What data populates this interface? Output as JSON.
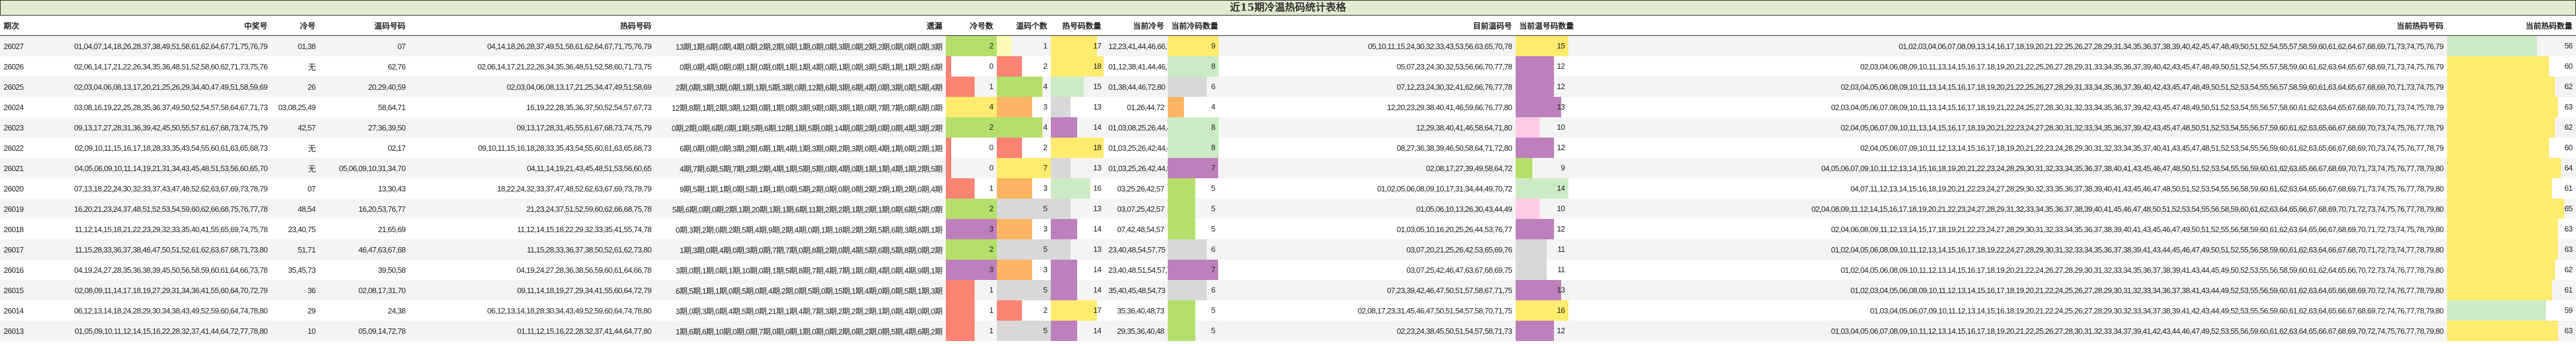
{
  "title": "近15期冷温热码统计表格",
  "colors": {
    "title_bg": "#e2ebd0",
    "yellow": "#ffeb6e",
    "light_yellow": "#fffbb8",
    "green": "#b5df6a",
    "light_green": "#cdeac6",
    "red": "#fa8374",
    "orange": "#fcb562",
    "gray": "#d8d8d8",
    "purple": "#be80bd",
    "pink": "#fdcbe6"
  },
  "headers": [
    "期次",
    "中奖号",
    "冷号",
    "温码号码",
    "热码号码",
    "遗漏",
    "冷号数",
    "温码个数",
    "热号码数量",
    "当前冷号",
    "当前冷码数量",
    "目前温码号",
    "当前温号码数量",
    "当前热码号码",
    "当前热码数量"
  ],
  "rows": [
    {
      "period": "26027",
      "winning": "01,04,07,14,18,26,28,37,38,49,51,58,61,62,64,67,71,75,76,79",
      "cold": "01,38",
      "warm": "07",
      "hot": "04,14,18,26,28,37,49,51,58,61,62,64,67,71,75,76,79",
      "miss": "13期,1期,6期,0期,4期,0期,2期,2期,9期,1期,0期,0期,3期,0期,2期,2期,0期,0期,0期,3期",
      "cold_count": "2",
      "warm_count": "1",
      "hot_count": "17",
      "cur_cold": "12,23,41,44,46,66,72,77,80",
      "cur_cold_count": "9",
      "cur_warm": "05,10,11,15,24,30,32,33,43,53,56,63,65,70,78",
      "cur_warm_count": "15",
      "cur_hot": "01,02,03,04,06,07,08,09,13,14,16,17,18,19,20,21,22,25,26,27,28,29,31,34,35,36,37,38,39,40,42,45,47,48,49,50,51,52,54,55,57,58,59,60,61,62,64,67,68,69,71,73,74,75,76,79",
      "cur_hot_count": "56"
    },
    {
      "period": "26026",
      "winning": "02,06,14,17,21,22,26,34,35,36,48,51,52,58,60,62,71,73,75,76",
      "cold": "无",
      "warm": "62,76",
      "hot": "02,06,14,17,21,22,26,34,35,36,48,51,52,58,60,71,73,75",
      "miss": "0期,0期,4期,0期,0期,1期,0期,0期,1期,1期,4期,0期,1期,0期,3期,5期,1期,1期,2期,6期",
      "cold_count": "0",
      "warm_count": "2",
      "hot_count": "18",
      "cur_cold": "01,12,38,41,44,46,72,80",
      "cur_cold_count": "8",
      "cur_warm": "05,07,23,24,30,32,53,56,66,70,77,78",
      "cur_warm_count": "12",
      "cur_hot": "02,03,04,06,08,09,10,11,13,14,15,16,17,18,19,20,21,22,25,26,27,28,29,31,33,34,35,36,37,39,40,42,43,45,47,48,49,50,51,52,54,55,57,58,59,60,61,62,63,64,65,67,68,69,71,73,74,75,76,79",
      "cur_hot_count": "60"
    },
    {
      "period": "26025",
      "winning": "02,03,04,06,08,13,17,20,21,25,26,29,34,40,47,49,51,58,59,69",
      "cold": "26",
      "warm": "20,29,40,59",
      "hot": "02,03,04,06,08,13,17,21,25,34,47,49,51,58,69",
      "miss": "2期,0期,3期,3期,0期,1期,1期,5期,3期,0期,12期,6期,3期,6期,4期,0期,3期,0期,5期,4期",
      "cold_count": "1",
      "warm_count": "4",
      "hot_count": "15",
      "cur_cold": "01,38,44,46,72,80",
      "cur_cold_count": "6",
      "cur_warm": "07,12,23,24,30,32,41,62,66,76,77,78",
      "cur_warm_count": "12",
      "cur_hot": "02,03,04,05,06,08,09,10,11,13,14,15,16,17,18,19,20,21,22,25,26,27,28,29,31,33,34,35,36,37,39,40,42,43,45,47,48,49,50,51,52,53,54,55,56,57,58,59,60,61,63,64,65,67,68,69,70,71,73,74,75,79",
      "cur_hot_count": "62"
    },
    {
      "period": "26024",
      "winning": "03,08,16,19,22,25,28,35,36,37,49,50,52,54,57,58,64,67,71,73",
      "cold": "03,08,25,49",
      "warm": "58,64,71",
      "hot": "16,19,22,28,35,36,37,50,52,54,57,67,73",
      "miss": "12期,8期,1期,2期,3期,12期,0期,1期,0期,3期,9期,0期,3期,1期,0期,7期,7期,0期,6期,0期",
      "cold_count": "4",
      "warm_count": "3",
      "hot_count": "13",
      "cur_cold": "01,26,44,72",
      "cur_cold_count": "4",
      "cur_warm": "12,20,23,29,38,40,41,46,59,66,76,77,80",
      "cur_warm_count": "13",
      "cur_hot": "02,03,04,05,06,07,08,09,10,11,13,14,15,16,17,18,19,21,22,24,25,27,28,30,31,32,33,34,35,36,37,39,42,43,45,47,48,49,50,51,52,53,54,55,56,57,58,60,61,62,63,64,65,67,68,69,70,71,73,74,75,78,79",
      "cur_hot_count": "63"
    },
    {
      "period": "26023",
      "winning": "09,13,17,27,28,31,36,39,42,45,50,55,57,61,67,68,73,74,75,79",
      "cold": "42,57",
      "warm": "27,36,39,50",
      "hot": "09,13,17,28,31,45,55,61,67,68,73,74,75,79",
      "miss": "0期,2期,0期,6期,0期,1期,5期,6期,12期,1期,5期,0期,14期,0期,2期,0期,0期,4期,3期,2期",
      "cold_count": "2",
      "warm_count": "4",
      "hot_count": "14",
      "cur_cold": "01,03,08,25,26,44,49,72",
      "cur_cold_count": "8",
      "cur_warm": "12,29,38,40,41,46,58,64,71,80",
      "cur_warm_count": "10",
      "cur_hot": "02,04,05,06,07,09,10,11,13,14,15,16,17,18,19,20,21,22,23,24,27,28,30,31,32,33,34,35,36,37,39,42,43,45,47,48,50,51,52,53,54,55,56,57,59,60,61,62,63,65,66,67,68,69,70,73,74,75,76,77,78,79",
      "cur_hot_count": "62"
    },
    {
      "period": "26022",
      "winning": "02,09,10,11,15,16,17,18,28,33,35,43,54,55,60,61,63,65,68,73",
      "cold": "无",
      "warm": "02,17",
      "hot": "09,10,11,15,16,18,28,33,35,43,54,55,60,61,63,65,68,73",
      "miss": "6期,0期,0期,0期,3期,2期,6期,1期,4期,1期,3期,0期,2期,3期,0期,4期,1期,0期,2期,1期",
      "cold_count": "0",
      "warm_count": "2",
      "hot_count": "18",
      "cur_cold": "01,03,25,26,42,44,49,57",
      "cur_cold_count": "8",
      "cur_warm": "08,27,36,38,39,46,50,58,64,71,72,80",
      "cur_warm_count": "12",
      "cur_hot": "02,04,05,06,07,09,10,11,12,13,14,15,16,17,18,19,20,21,22,23,24,28,29,30,31,32,33,34,35,37,40,41,43,45,47,48,51,52,53,54,55,56,59,60,61,62,63,65,66,67,68,69,70,73,74,75,76,77,78,79",
      "cur_hot_count": "60"
    },
    {
      "period": "26021",
      "winning": "04,05,06,09,10,11,14,19,21,31,34,43,45,48,51,53,56,60,65,70",
      "cold": "无",
      "warm": "05,06,09,10,31,34,70",
      "hot": "04,11,14,19,21,43,45,48,51,53,56,60,65",
      "miss": "4期,7期,6期,5期,7期,2期,2期,4期,1期,5期,5期,0期,4期,0期,1期,1期,4期,1期,2期,5期",
      "cold_count": "0",
      "warm_count": "7",
      "hot_count": "13",
      "cur_cold": "01,03,25,26,42,44,57",
      "cur_cold_count": "7",
      "cur_warm": "02,08,17,27,39,49,58,64,72",
      "cur_warm_count": "9",
      "cur_hot": "04,05,06,07,09,10,11,12,13,14,15,16,18,19,20,21,22,23,24,28,29,30,31,32,33,34,35,36,37,38,40,41,43,45,46,47,48,50,51,52,53,54,55,56,59,60,61,62,63,65,66,67,68,69,70,71,73,74,75,76,77,78,79,80",
      "cur_hot_count": "64"
    },
    {
      "period": "26020",
      "winning": "07,13,18,22,24,30,32,33,37,43,47,48,52,62,63,67,69,73,78,79",
      "cold": "07",
      "warm": "13,30,43",
      "hot": "18,22,24,32,33,37,47,48,52,62,63,67,69,73,78,79",
      "miss": "9期,5期,1期,1期,0期,5期,1期,1期,0期,5期,2期,0期,0期,0期,2期,2期,1期,2期,0期,4期",
      "cold_count": "1",
      "warm_count": "3",
      "hot_count": "16",
      "cur_cold": "03,25,26,42,57",
      "cur_cold_count": "5",
      "cur_warm": "01,02,05,06,08,09,10,17,31,34,44,49,70,72",
      "cur_warm_count": "14",
      "cur_hot": "04,07,11,12,13,14,15,16,18,19,20,21,22,23,24,27,28,29,30,32,33,35,36,37,38,39,40,41,43,45,46,47,48,50,51,52,53,54,55,56,58,59,60,61,62,63,64,65,66,67,68,69,71,73,74,75,76,77,78,79,80",
      "cur_hot_count": "61"
    },
    {
      "period": "26019",
      "winning": "16,20,21,23,24,37,48,51,52,53,54,59,60,62,66,68,75,76,77,78",
      "cold": "48,54",
      "warm": "16,20,53,76,77",
      "hot": "21,23,24,37,51,52,59,60,62,66,68,75,78",
      "miss": "5期,6期,0期,0期,2期,1期,20期,1期,1期,6期,11期,2期,2期,1期,2期,1期,0期,6期,5期,0期",
      "cold_count": "2",
      "warm_count": "5",
      "hot_count": "13",
      "cur_cold": "03,07,25,42,57",
      "cur_cold_count": "5",
      "cur_warm": "01,05,06,10,13,26,30,43,44,49",
      "cur_warm_count": "10",
      "cur_hot": "02,04,08,09,11,12,14,15,16,17,18,19,20,21,22,23,24,27,28,29,31,32,33,34,35,36,37,38,39,40,41,45,46,47,48,50,51,52,53,54,55,56,58,59,60,61,62,63,64,65,66,67,68,69,70,71,72,73,74,75,76,77,78,79,80",
      "cur_hot_count": "65"
    },
    {
      "period": "26018",
      "winning": "11,12,14,15,18,21,22,23,29,32,33,35,40,41,55,65,69,74,75,78",
      "cold": "23,40,75",
      "warm": "21,65,69",
      "hot": "11,12,14,15,18,22,29,32,33,35,41,55,74,78",
      "miss": "0期,3期,2期,0期,2期,5期,4期,9期,2期,4期,0期,1期,18期,2期,2期,5期,6期,3期,8期,1期",
      "cold_count": "3",
      "warm_count": "3",
      "hot_count": "14",
      "cur_cold": "07,42,48,54,57",
      "cur_cold_count": "5",
      "cur_warm": "01,03,05,10,16,20,25,26,44,53,76,77",
      "cur_warm_count": "12",
      "cur_hot": "02,04,06,08,09,11,12,13,14,15,17,18,19,21,22,23,24,27,28,29,30,31,32,33,34,35,36,37,38,39,40,41,43,45,46,47,49,50,51,52,55,56,58,59,60,61,62,63,64,65,66,67,68,69,70,71,72,73,74,75,78,79,80",
      "cur_hot_count": "63"
    },
    {
      "period": "26017",
      "winning": "11,15,28,33,36,37,38,46,47,50,51,52,61,62,63,67,68,71,73,80",
      "cold": "51,71",
      "warm": "46,47,63,67,68",
      "hot": "11,15,28,33,36,37,38,50,52,61,62,73,80",
      "miss": "1期,3期,0期,4期,0期,3期,0期,7期,7期,0期,8期,2期,0期,4期,5期,6期,5期,8期,0期,2期",
      "cold_count": "2",
      "warm_count": "5",
      "hot_count": "13",
      "cur_cold": "23,40,48,54,57,75",
      "cur_cold_count": "6",
      "cur_warm": "03,07,20,21,25,26,42,53,65,69,76",
      "cur_warm_count": "11",
      "cur_hot": "01,02,04,05,06,08,09,10,11,12,13,14,15,16,17,18,19,22,24,27,28,29,30,31,32,33,34,35,36,37,38,39,41,43,44,45,46,47,49,50,51,52,55,56,58,59,60,61,62,63,64,66,67,68,70,71,72,73,74,77,78,79,80",
      "cur_hot_count": "63"
    },
    {
      "period": "26016",
      "winning": "04,19,24,27,28,35,36,38,39,45,50,56,58,59,60,61,64,66,73,78",
      "cold": "35,45,73",
      "warm": "39,50,58",
      "hot": "04,19,24,27,28,36,38,56,59,60,61,64,66,78",
      "miss": "3期,0期,1期,0期,1期,10期,0期,1期,5期,8期,7期,4期,7期,1期,0期,4期,0期,4期,9期,1期",
      "cold_count": "3",
      "warm_count": "3",
      "hot_count": "14",
      "cur_cold": "23,40,48,51,54,57,71",
      "cur_cold_count": "7",
      "cur_warm": "03,07,25,42,46,47,63,67,68,69,75",
      "cur_warm_count": "11",
      "cur_hot": "01,02,04,05,06,08,09,10,11,12,13,14,15,16,17,18,19,20,21,22,24,26,27,28,29,30,31,32,33,34,35,36,37,38,39,41,43,44,45,49,50,52,53,55,56,58,59,60,61,62,64,65,66,70,72,73,74,76,77,78,79,80",
      "cur_hot_count": "62"
    },
    {
      "period": "26015",
      "winning": "02,08,09,11,14,17,18,19,27,29,31,34,36,41,55,60,64,70,72,79",
      "cold": "36",
      "warm": "02,08,17,31,70",
      "hot": "09,11,14,18,19,27,29,34,41,55,60,64,72,79",
      "miss": "6期,5期,1期,1期,0期,5期,0期,4期,2期,0期,5期,0期,15期,1期,4期,0期,0期,5期,1期,3期",
      "cold_count": "1",
      "warm_count": "5",
      "hot_count": "14",
      "cur_cold": "35,40,45,48,54,73",
      "cur_cold_count": "6",
      "cur_warm": "07,23,39,42,46,47,50,51,57,58,67,71,75",
      "cur_warm_count": "13",
      "cur_hot": "01,02,03,04,05,06,08,09,10,11,12,13,14,15,16,17,18,19,20,21,22,24,25,26,27,28,29,30,31,32,33,34,36,37,38,41,43,44,49,52,53,55,56,59,60,61,62,63,64,65,66,68,69,70,72,74,76,77,78,79,80",
      "cur_hot_count": "61"
    },
    {
      "period": "26014",
      "winning": "06,12,13,14,18,24,28,29,30,34,38,43,49,52,59,60,64,74,78,80",
      "cold": "29",
      "warm": "24,38",
      "hot": "06,12,13,14,18,28,30,34,43,49,52,59,60,64,74,78,80",
      "miss": "3期,0期,3期,0期,4期,5期,0期,21期,1期,4期,7期,3期,2期,2期,2期,1期,0期,4期,0期,0期",
      "cold_count": "1",
      "warm_count": "2",
      "hot_count": "17",
      "cur_cold": "35,36,40,48,73",
      "cur_cold_count": "5",
      "cur_warm": "02,08,17,23,31,45,46,47,50,51,54,57,58,70,71,75",
      "cur_warm_count": "16",
      "cur_hot": "01,03,04,05,06,07,09,10,11,12,13,14,15,16,18,19,20,21,22,24,25,26,27,28,29,30,32,33,34,37,38,39,41,42,43,44,49,52,53,55,56,59,60,61,62,63,64,65,66,67,68,69,72,74,76,77,78,79,80",
      "cur_hot_count": "59"
    },
    {
      "period": "26013",
      "winning": "01,05,09,10,11,12,14,15,16,22,28,32,37,41,44,64,72,77,78,80",
      "cold": "10",
      "warm": "05,09,14,72,78",
      "hot": "01,11,12,15,16,22,28,32,37,41,44,64,77,80",
      "miss": "1期,6期,6期,10期,0期,0期,7期,0期,0期,1期,0期,0期,2期,0期,2期,0期,5期,4期,6期,2期",
      "cold_count": "1",
      "warm_count": "5",
      "hot_count": "14",
      "cur_cold": "29,35,36,40,48",
      "cur_cold_count": "5",
      "cur_warm": "02,23,24,38,45,50,51,54,57,58,71,73",
      "cur_warm_count": "12",
      "cur_hot": "01,03,04,05,06,07,08,09,10,11,12,13,14,15,16,17,18,19,20,21,22,25,26,27,28,30,31,32,33,34,37,39,41,42,43,44,46,47,49,52,53,55,56,59,60,61,62,63,64,65,66,67,68,69,70,72,74,75,76,77,78,79,80",
      "cur_hot_count": "63"
    }
  ]
}
